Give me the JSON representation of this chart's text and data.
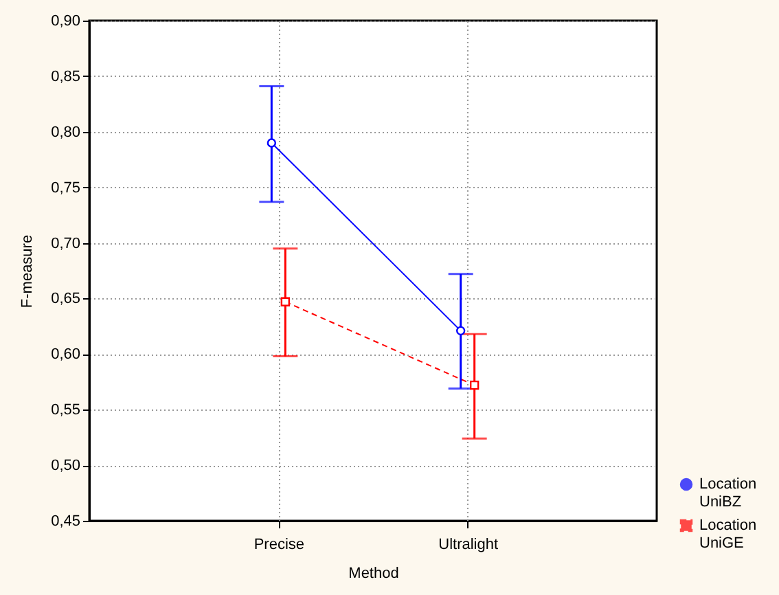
{
  "chart_data": {
    "type": "line",
    "xlabel": "Method",
    "ylabel": "F-measure",
    "categories": [
      "Precise",
      "Ultralight"
    ],
    "series": [
      {
        "name": "Location UniBZ",
        "color": "#0000ff",
        "values": [
          0.79,
          0.621
        ],
        "errors": [
          [
            0.737,
            0.841
          ],
          [
            0.569,
            0.672
          ]
        ],
        "marker": "circle",
        "line_style": "solid"
      },
      {
        "name": "Location UniGE",
        "color": "#ff0000",
        "values": [
          0.647,
          0.572
        ],
        "errors": [
          [
            0.598,
            0.695
          ],
          [
            0.524,
            0.618
          ]
        ],
        "marker": "square",
        "line_style": "dashed"
      }
    ],
    "ylim": [
      0.45,
      0.9
    ],
    "yticks": [
      {
        "value": 0.45,
        "label": "0,45"
      },
      {
        "value": 0.5,
        "label": "0,50"
      },
      {
        "value": 0.55,
        "label": "0,55"
      },
      {
        "value": 0.6,
        "label": "0,60"
      },
      {
        "value": 0.65,
        "label": "0,65"
      },
      {
        "value": 0.7,
        "label": "0,70"
      },
      {
        "value": 0.75,
        "label": "0,75"
      },
      {
        "value": 0.8,
        "label": "0,80"
      },
      {
        "value": 0.85,
        "label": "0,85"
      },
      {
        "value": 0.9,
        "label": "0,90"
      }
    ],
    "grid": true,
    "legend": "bottom right"
  }
}
